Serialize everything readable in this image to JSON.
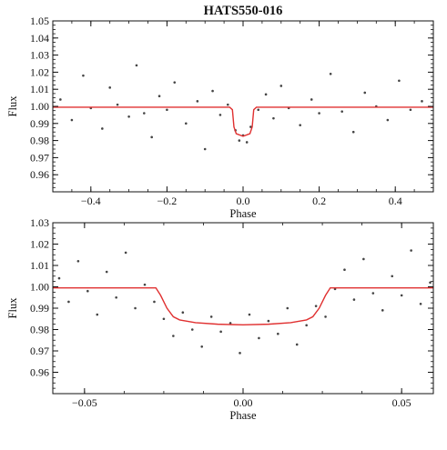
{
  "figure": {
    "title": "HATS550-016"
  },
  "colors": {
    "points": "#444444",
    "model": "#e03030",
    "axes": "#111111"
  },
  "chart_data": [
    {
      "type": "scatter",
      "title": "HATS550-016",
      "xlabel": "Phase",
      "ylabel": "Flux",
      "xlim": [
        -0.5,
        0.5
      ],
      "ylim": [
        0.95,
        1.05
      ],
      "xticks": [
        -0.4,
        -0.2,
        0.0,
        0.2,
        0.4
      ],
      "xtick_labels": [
        "−0.4",
        "−0.2",
        "0.0",
        "0.2",
        "0.4"
      ],
      "yticks": [
        0.96,
        0.97,
        0.98,
        0.99,
        1.0,
        1.01,
        1.02,
        1.03,
        1.04,
        1.05
      ],
      "ytick_labels": [
        "0.96",
        "0.97",
        "0.98",
        "0.99",
        "1.00",
        "1.01",
        "1.02",
        "1.03",
        "1.04",
        "1.05"
      ],
      "grid": false,
      "series": [
        {
          "type": "scatter",
          "points": [
            [
              -0.48,
              1.004
            ],
            [
              -0.45,
              0.992
            ],
            [
              -0.42,
              1.018
            ],
            [
              -0.4,
              0.999
            ],
            [
              -0.37,
              0.987
            ],
            [
              -0.35,
              1.011
            ],
            [
              -0.33,
              1.001
            ],
            [
              -0.3,
              0.994
            ],
            [
              -0.28,
              1.024
            ],
            [
              -0.26,
              0.996
            ],
            [
              -0.24,
              0.982
            ],
            [
              -0.22,
              1.006
            ],
            [
              -0.2,
              0.998
            ],
            [
              -0.18,
              1.014
            ],
            [
              -0.15,
              0.99
            ],
            [
              -0.12,
              1.003
            ],
            [
              -0.1,
              0.975
            ],
            [
              -0.08,
              1.009
            ],
            [
              -0.06,
              0.995
            ],
            [
              -0.04,
              1.001
            ],
            [
              -0.02,
              0.986
            ],
            [
              -0.01,
              0.98
            ],
            [
              0.0,
              0.983
            ],
            [
              0.01,
              0.979
            ],
            [
              0.02,
              0.988
            ],
            [
              0.04,
              0.998
            ],
            [
              0.06,
              1.007
            ],
            [
              0.08,
              0.993
            ],
            [
              0.1,
              1.012
            ],
            [
              0.12,
              0.999
            ],
            [
              0.15,
              0.989
            ],
            [
              0.18,
              1.004
            ],
            [
              0.2,
              0.996
            ],
            [
              0.23,
              1.019
            ],
            [
              0.26,
              0.997
            ],
            [
              0.29,
              0.985
            ],
            [
              0.32,
              1.008
            ],
            [
              0.35,
              1.0
            ],
            [
              0.38,
              0.992
            ],
            [
              0.41,
              1.015
            ],
            [
              0.44,
              0.998
            ],
            [
              0.47,
              1.003
            ]
          ]
        },
        {
          "type": "line",
          "points": [
            [
              -0.5,
              0.9995
            ],
            [
              -0.035,
              0.9995
            ],
            [
              -0.028,
              0.998
            ],
            [
              -0.024,
              0.988
            ],
            [
              -0.018,
              0.984
            ],
            [
              0.0,
              0.9825
            ],
            [
              0.018,
              0.984
            ],
            [
              0.024,
              0.988
            ],
            [
              0.028,
              0.998
            ],
            [
              0.035,
              0.9995
            ],
            [
              0.5,
              0.9995
            ]
          ]
        }
      ]
    },
    {
      "type": "scatter",
      "xlabel": "Phase",
      "ylabel": "Flux",
      "xlim": [
        -0.06,
        0.06
      ],
      "ylim": [
        0.95,
        1.03
      ],
      "xticks": [
        -0.05,
        0.0,
        0.05
      ],
      "xtick_labels": [
        "−0.05",
        "0.00",
        "0.05"
      ],
      "yticks": [
        0.96,
        0.97,
        0.98,
        0.99,
        1.0,
        1.01,
        1.02,
        1.03
      ],
      "ytick_labels": [
        "0.96",
        "0.97",
        "0.98",
        "0.99",
        "1.00",
        "1.01",
        "1.02",
        "1.03"
      ],
      "grid": false,
      "series": [
        {
          "type": "scatter",
          "points": [
            [
              -0.058,
              1.004
            ],
            [
              -0.055,
              0.993
            ],
            [
              -0.052,
              1.012
            ],
            [
              -0.049,
              0.998
            ],
            [
              -0.046,
              0.987
            ],
            [
              -0.043,
              1.007
            ],
            [
              -0.04,
              0.995
            ],
            [
              -0.037,
              1.016
            ],
            [
              -0.034,
              0.99
            ],
            [
              -0.031,
              1.001
            ],
            [
              -0.028,
              0.993
            ],
            [
              -0.025,
              0.985
            ],
            [
              -0.022,
              0.977
            ],
            [
              -0.019,
              0.988
            ],
            [
              -0.016,
              0.98
            ],
            [
              -0.013,
              0.972
            ],
            [
              -0.01,
              0.986
            ],
            [
              -0.007,
              0.979
            ],
            [
              -0.004,
              0.983
            ],
            [
              -0.001,
              0.969
            ],
            [
              0.002,
              0.987
            ],
            [
              0.005,
              0.976
            ],
            [
              0.008,
              0.984
            ],
            [
              0.011,
              0.978
            ],
            [
              0.014,
              0.99
            ],
            [
              0.017,
              0.973
            ],
            [
              0.02,
              0.982
            ],
            [
              0.023,
              0.991
            ],
            [
              0.026,
              0.986
            ],
            [
              0.029,
              0.999
            ],
            [
              0.032,
              1.008
            ],
            [
              0.035,
              0.994
            ],
            [
              0.038,
              1.013
            ],
            [
              0.041,
              0.997
            ],
            [
              0.044,
              0.989
            ],
            [
              0.047,
              1.005
            ],
            [
              0.05,
              0.996
            ],
            [
              0.053,
              1.017
            ],
            [
              0.056,
              0.992
            ],
            [
              0.059,
              1.002
            ]
          ]
        },
        {
          "type": "line",
          "points": [
            [
              -0.06,
              0.9995
            ],
            [
              -0.0275,
              0.9995
            ],
            [
              -0.026,
              0.996
            ],
            [
              -0.024,
              0.99
            ],
            [
              -0.022,
              0.986
            ],
            [
              -0.02,
              0.9845
            ],
            [
              -0.015,
              0.9832
            ],
            [
              -0.008,
              0.9825
            ],
            [
              0.0,
              0.9822
            ],
            [
              0.008,
              0.9825
            ],
            [
              0.015,
              0.9832
            ],
            [
              0.02,
              0.9845
            ],
            [
              0.022,
              0.986
            ],
            [
              0.024,
              0.99
            ],
            [
              0.026,
              0.996
            ],
            [
              0.0275,
              0.9995
            ],
            [
              0.06,
              0.9995
            ]
          ]
        }
      ]
    }
  ]
}
